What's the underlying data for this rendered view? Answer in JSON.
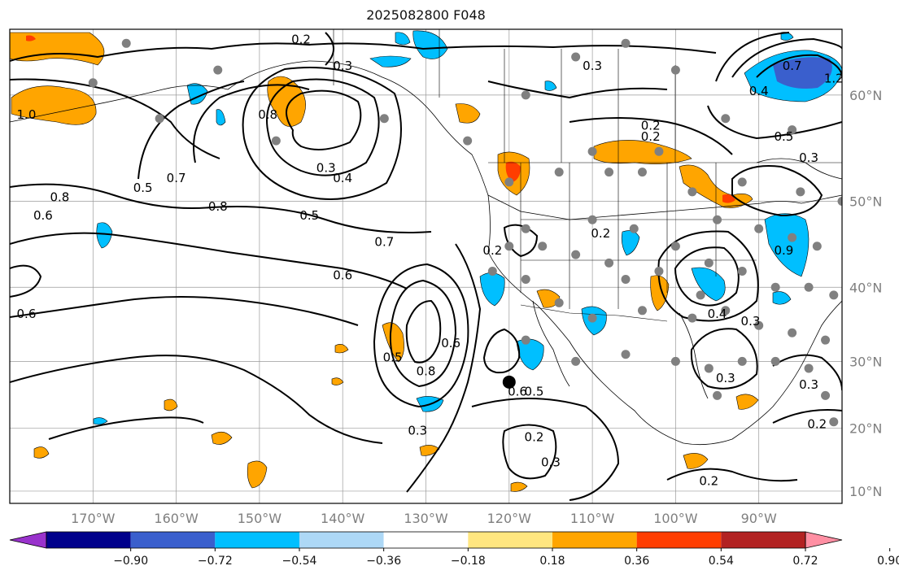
{
  "title": "2025082800 F048",
  "latitude_labels": [
    "60°N",
    "50°N",
    "40°N",
    "30°N",
    "20°N",
    "10°N"
  ],
  "longitude_labels": [
    "170°W",
    "160°W",
    "150°W",
    "140°W",
    "130°W",
    "120°W",
    "110°W",
    "100°W",
    "90°W"
  ],
  "colorbar": {
    "tick_labels": [
      "−0.90",
      "−0.72",
      "−0.54",
      "−0.36",
      "−0.18",
      "0.18",
      "0.36",
      "0.54",
      "0.72",
      "0.90"
    ],
    "colors": [
      "#9932cc",
      "#00008b",
      "#3a5fcd",
      "#00bfff",
      "#add8f6",
      "#ffffff",
      "#ffe680",
      "#ffa500",
      "#ff3d00",
      "#b22222",
      "#ff8fa3"
    ]
  },
  "contour_labels": [
    {
      "text": "0.2",
      "lat": 64,
      "lon": -145
    },
    {
      "text": "0.3",
      "lat": 62,
      "lon": -140
    },
    {
      "text": "0.3",
      "lat": 62,
      "lon": -110
    },
    {
      "text": "0.8",
      "lat": 58,
      "lon": -149
    },
    {
      "text": "0.3",
      "lat": 53,
      "lon": -142
    },
    {
      "text": "0.4",
      "lat": 52,
      "lon": -140
    },
    {
      "text": "0.5",
      "lat": 48,
      "lon": -144
    },
    {
      "text": "0.5",
      "lat": 51,
      "lon": -164
    },
    {
      "text": "0.7",
      "lat": 52,
      "lon": -160
    },
    {
      "text": "0.8",
      "lat": 49,
      "lon": -155
    },
    {
      "text": "0.8",
      "lat": 50,
      "lon": -174
    },
    {
      "text": "0.6",
      "lat": 48,
      "lon": -176
    },
    {
      "text": "0.7",
      "lat": 45,
      "lon": -135
    },
    {
      "text": "0.6",
      "lat": 41,
      "lon": -140
    },
    {
      "text": "1.0",
      "lat": 58,
      "lon": -178
    },
    {
      "text": "0.6",
      "lat": 36,
      "lon": -178
    },
    {
      "text": "0.2",
      "lat": 44,
      "lon": -122
    },
    {
      "text": "0.2",
      "lat": 56,
      "lon": -103
    },
    {
      "text": "0.2",
      "lat": 46,
      "lon": -109
    },
    {
      "text": "0.5",
      "lat": 30,
      "lon": -134
    },
    {
      "text": "0.8",
      "lat": 28,
      "lon": -130
    },
    {
      "text": "0.6",
      "lat": 32,
      "lon": -127
    },
    {
      "text": "0.6",
      "lat": 25,
      "lon": -119
    },
    {
      "text": "0.5",
      "lat": 25,
      "lon": -117
    },
    {
      "text": "0.3",
      "lat": 19,
      "lon": -131
    },
    {
      "text": "0.2",
      "lat": 18,
      "lon": -117
    },
    {
      "text": "0.3",
      "lat": 14,
      "lon": -115
    },
    {
      "text": "0.3",
      "lat": 27,
      "lon": -94
    },
    {
      "text": "0.4",
      "lat": 36,
      "lon": -95
    },
    {
      "text": "0.3",
      "lat": 35,
      "lon": -91
    },
    {
      "text": "0.2",
      "lat": 11,
      "lon": -96
    },
    {
      "text": "0.3",
      "lat": 26,
      "lon": -84
    },
    {
      "text": "0.2",
      "lat": 20,
      "lon": -83
    },
    {
      "text": "0.9",
      "lat": 44,
      "lon": -87
    },
    {
      "text": "0.4",
      "lat": 60,
      "lon": -90
    },
    {
      "text": "0.7",
      "lat": 62,
      "lon": -86
    },
    {
      "text": "1.2",
      "lat": 61,
      "lon": -81
    },
    {
      "text": "0.3",
      "lat": 54,
      "lon": -84
    },
    {
      "text": "0.5",
      "lat": 56,
      "lon": -87
    },
    {
      "text": "0.2",
      "lat": 57,
      "lon": -103
    }
  ],
  "marker": {
    "name": "black-dot",
    "lat": 27,
    "lon": -120
  }
}
